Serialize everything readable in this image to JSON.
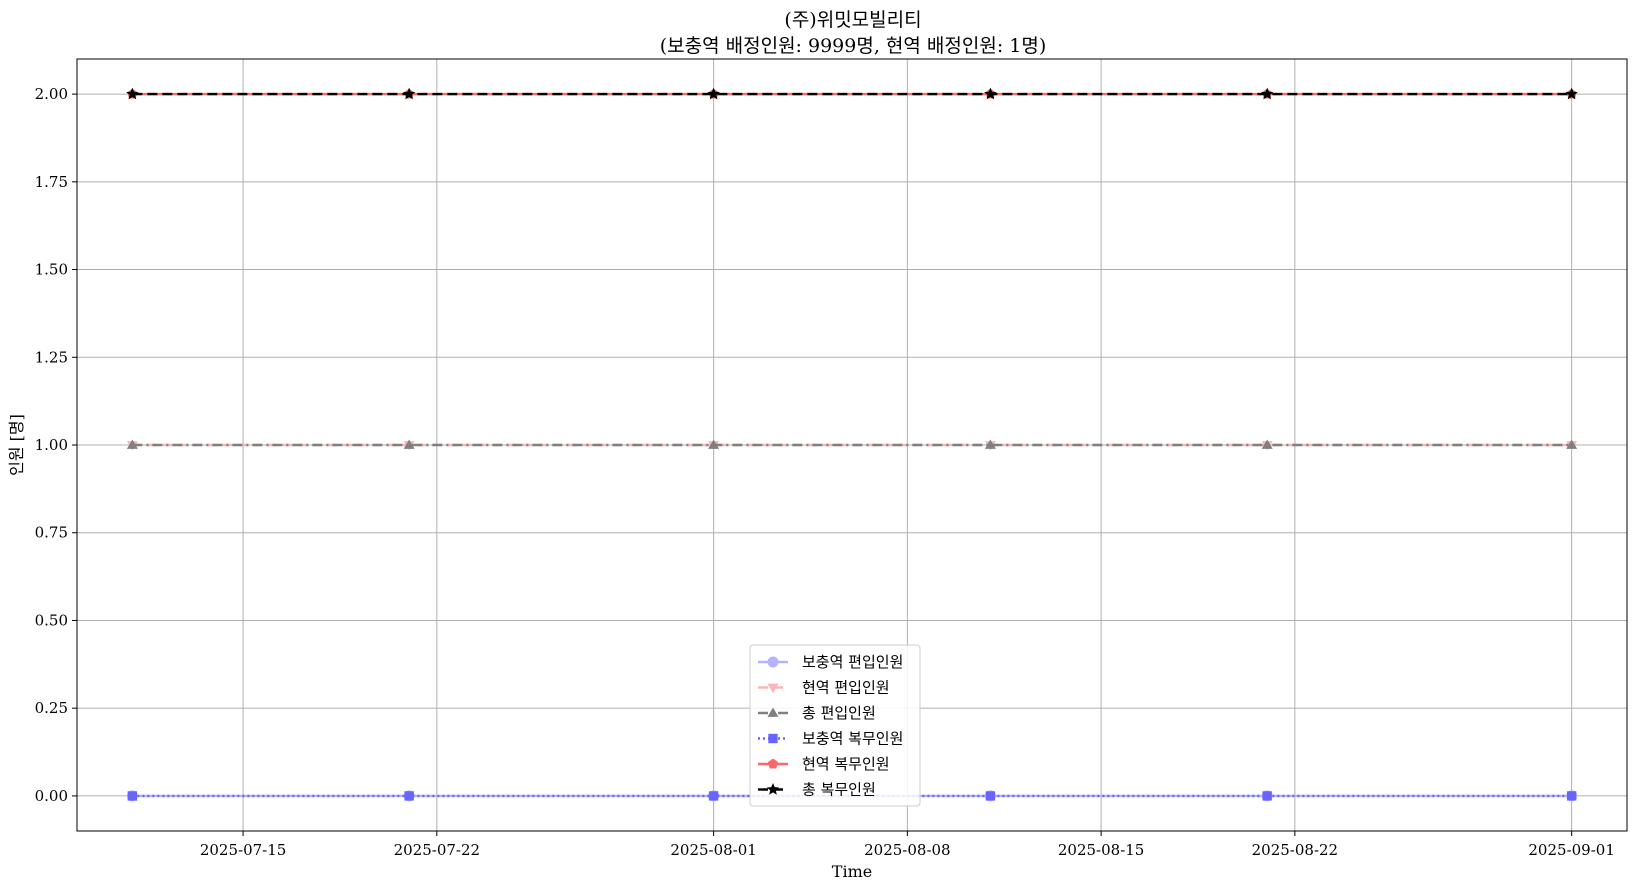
{
  "chart_data": {
    "type": "line",
    "title": "(주)위밋모빌리티",
    "subtitle": "(보충역 배정인원: 9999명, 현역 배정인원: 1명)",
    "xlabel": "Time",
    "ylabel": "인원 [명]",
    "x": [
      "2025-07-11",
      "2025-07-21",
      "2025-08-01",
      "2025-08-11",
      "2025-08-21",
      "2025-09-01"
    ],
    "xlim": [
      "2025-07-09",
      "2025-09-03"
    ],
    "x_ticks": [
      "2025-07-15",
      "2025-07-22",
      "2025-08-01",
      "2025-08-08",
      "2025-08-15",
      "2025-08-22",
      "2025-09-01"
    ],
    "ylim": [
      -0.1,
      2.1
    ],
    "y_ticks": [
      "0.00",
      "0.25",
      "0.50",
      "0.75",
      "1.00",
      "1.25",
      "1.50",
      "1.75",
      "2.00"
    ],
    "grid": true,
    "legend_position": "lower center",
    "series": [
      {
        "name": "보충역 편입인원",
        "values": [
          0,
          0,
          0,
          0,
          0,
          0
        ],
        "color": "#b3b3ff",
        "line_style": "solid",
        "marker": "circle"
      },
      {
        "name": "현역 편입인원",
        "values": [
          1,
          1,
          1,
          1,
          1,
          1
        ],
        "color": "#ffb3b3",
        "line_style": "dashed",
        "marker": "triangle-down"
      },
      {
        "name": "총 편입인원",
        "values": [
          1,
          1,
          1,
          1,
          1,
          1
        ],
        "color": "#808080",
        "line_style": "dashdot",
        "marker": "triangle-up"
      },
      {
        "name": "보충역 복무인원",
        "values": [
          0,
          0,
          0,
          0,
          0,
          0
        ],
        "color": "#6666ff",
        "line_style": "dotted",
        "marker": "square"
      },
      {
        "name": "현역 복무인원",
        "values": [
          2,
          2,
          2,
          2,
          2,
          2
        ],
        "color": "#ff6666",
        "line_style": "solid",
        "marker": "pentagon"
      },
      {
        "name": "총 복무인원",
        "values": [
          2,
          2,
          2,
          2,
          2,
          2
        ],
        "color": "#000000",
        "line_style": "dashed",
        "marker": "star"
      }
    ]
  }
}
